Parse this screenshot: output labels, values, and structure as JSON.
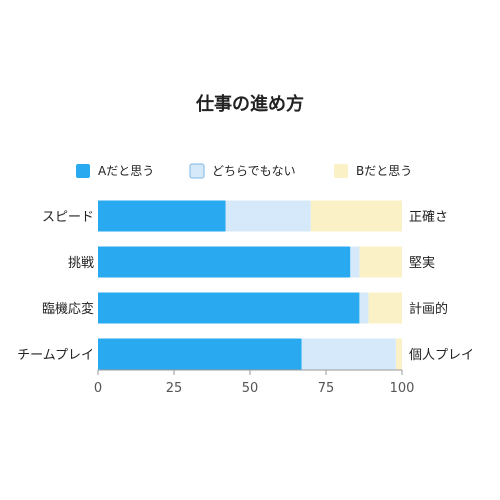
{
  "chart_data": {
    "type": "bar",
    "orientation": "horizontal",
    "stacked": true,
    "title": "仕事の進め方",
    "categories": [
      "スピード",
      "挑戦",
      "臨機応変",
      "チームプレイ"
    ],
    "right_labels": [
      "正確さ",
      "堅実",
      "計画的",
      "個人プレイ"
    ],
    "series": [
      {
        "name": "Aだと思う",
        "color": "#29aaf0",
        "values": [
          42,
          83,
          86,
          67
        ]
      },
      {
        "name": "どちらでもない",
        "color": "#d6e9fb",
        "values": [
          28,
          3,
          3,
          31
        ]
      },
      {
        "name": "Bだと思う",
        "color": "#fbf1c7",
        "values": [
          30,
          14,
          11,
          2
        ]
      }
    ],
    "xlim": [
      0,
      100
    ],
    "xticks": [
      0,
      25,
      50,
      75,
      100
    ],
    "legend_position": "top",
    "grid": false
  }
}
